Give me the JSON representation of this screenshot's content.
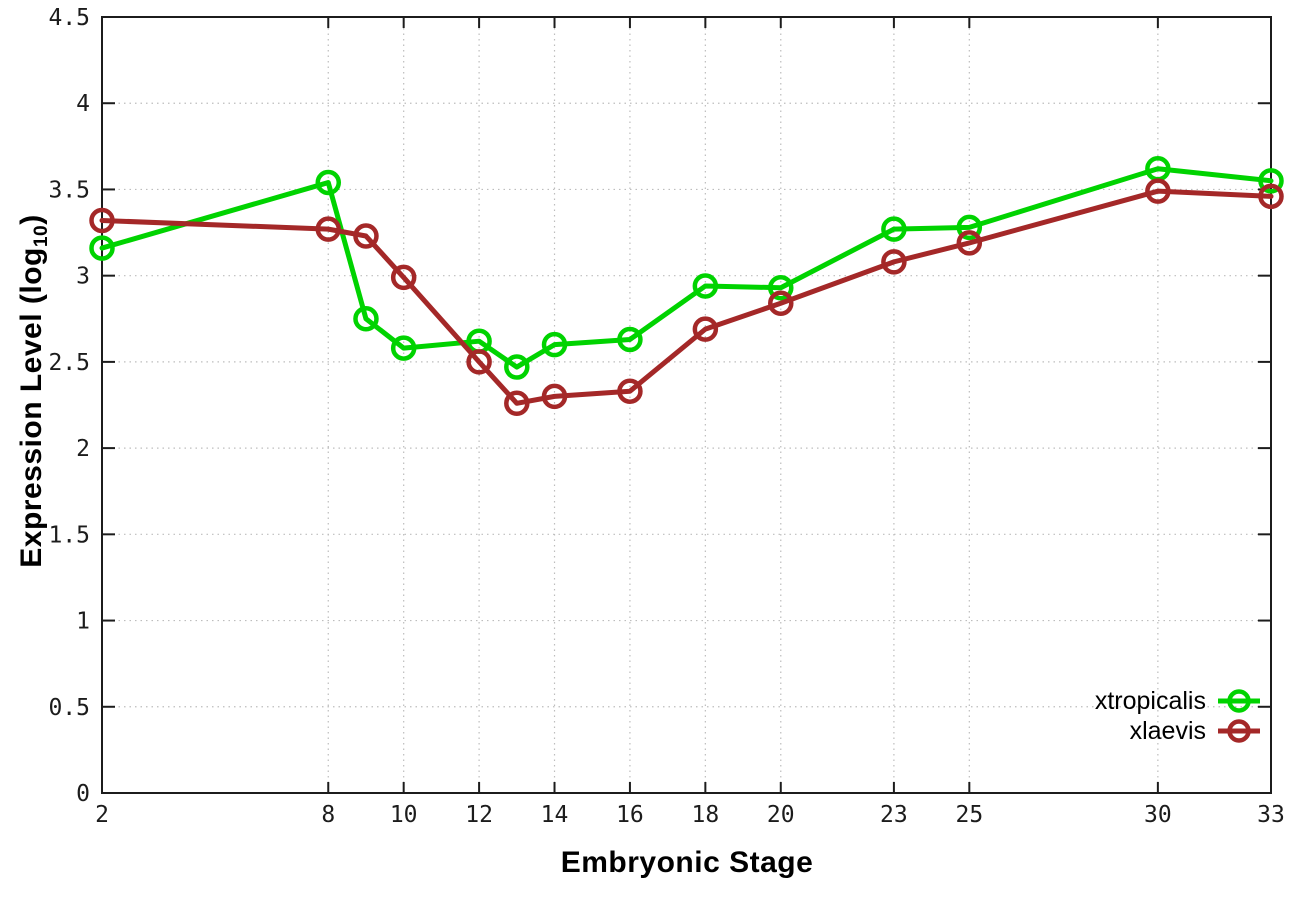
{
  "figure": {
    "background": "#ffffff",
    "border_color": "#1c1c1c",
    "grid_color": "#bdbdbd",
    "tick_label_color": "#1c1c1c"
  },
  "chart_data": {
    "type": "line",
    "title": "",
    "xlabel": "Embryonic Stage",
    "ylabel": "Expression Level (log10)",
    "ylabel_rich": {
      "pre": "Expression Level (log",
      "sub": "10",
      "post": ")"
    },
    "xlim": [
      2,
      33
    ],
    "ylim": [
      0,
      4.5
    ],
    "grid": true,
    "legend_position": "bottom-right",
    "x": [
      2,
      8,
      9,
      10,
      12,
      13,
      14,
      16,
      18,
      20,
      23,
      25,
      30,
      33
    ],
    "x_ticks": [
      2,
      8,
      10,
      12,
      14,
      16,
      18,
      20,
      23,
      25,
      30,
      33
    ],
    "x_tick_labels": [
      "2",
      "8",
      "10",
      "12",
      "14",
      "16",
      "18",
      "20",
      "23",
      "25",
      "30",
      "33"
    ],
    "y_ticks": [
      0,
      0.5,
      1,
      1.5,
      2,
      2.5,
      3,
      3.5,
      4,
      4.5
    ],
    "y_tick_labels": [
      "0",
      "0.5",
      "1",
      "1.5",
      "2",
      "2.5",
      "3",
      "3.5",
      "4",
      "4.5"
    ],
    "series": [
      {
        "name": "xtropicalis",
        "color": "#00d300",
        "marker": "open-circle",
        "values": [
          3.16,
          3.54,
          2.75,
          2.58,
          2.62,
          2.47,
          2.6,
          2.63,
          2.94,
          2.93,
          3.27,
          3.28,
          3.62,
          3.55
        ]
      },
      {
        "name": "xlaevis",
        "color": "#a42828",
        "marker": "open-circle",
        "values": [
          3.32,
          3.27,
          3.23,
          2.99,
          2.5,
          2.26,
          2.3,
          2.33,
          2.69,
          2.84,
          3.08,
          3.19,
          3.49,
          3.46
        ]
      }
    ]
  }
}
